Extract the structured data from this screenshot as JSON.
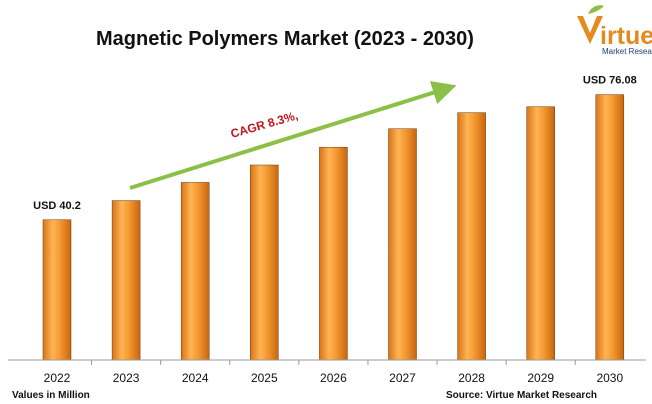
{
  "chart_data": {
    "type": "bar",
    "title": "Magnetic Polymers Market (2023 - 2030)",
    "categories": [
      "2022",
      "2023",
      "2024",
      "2025",
      "2026",
      "2027",
      "2028",
      "2029",
      "2030"
    ],
    "values": [
      40.2,
      45.7,
      50.9,
      55.9,
      61.0,
      66.3,
      70.9,
      72.6,
      76.08
    ],
    "data_labels": [
      {
        "index": 0,
        "text": "USD 40.2"
      },
      {
        "index": 8,
        "text": "USD 76.08"
      }
    ],
    "ylim": [
      0,
      86
    ],
    "grid": false,
    "bar_color": "#f29a2e",
    "annotation": {
      "text": "CAGR 8.3%,",
      "color": "#c0161b",
      "arrow_color": "#8bbf45"
    },
    "notes": {
      "left": "Values in Million",
      "right": "Source: Virtue Market Research"
    }
  },
  "logo": {
    "main_text": "irtue",
    "sub_text": "Market Research",
    "color": "#e58a1f",
    "sub_color": "#1a3f7a",
    "leaf_color": "#8bbf45"
  }
}
